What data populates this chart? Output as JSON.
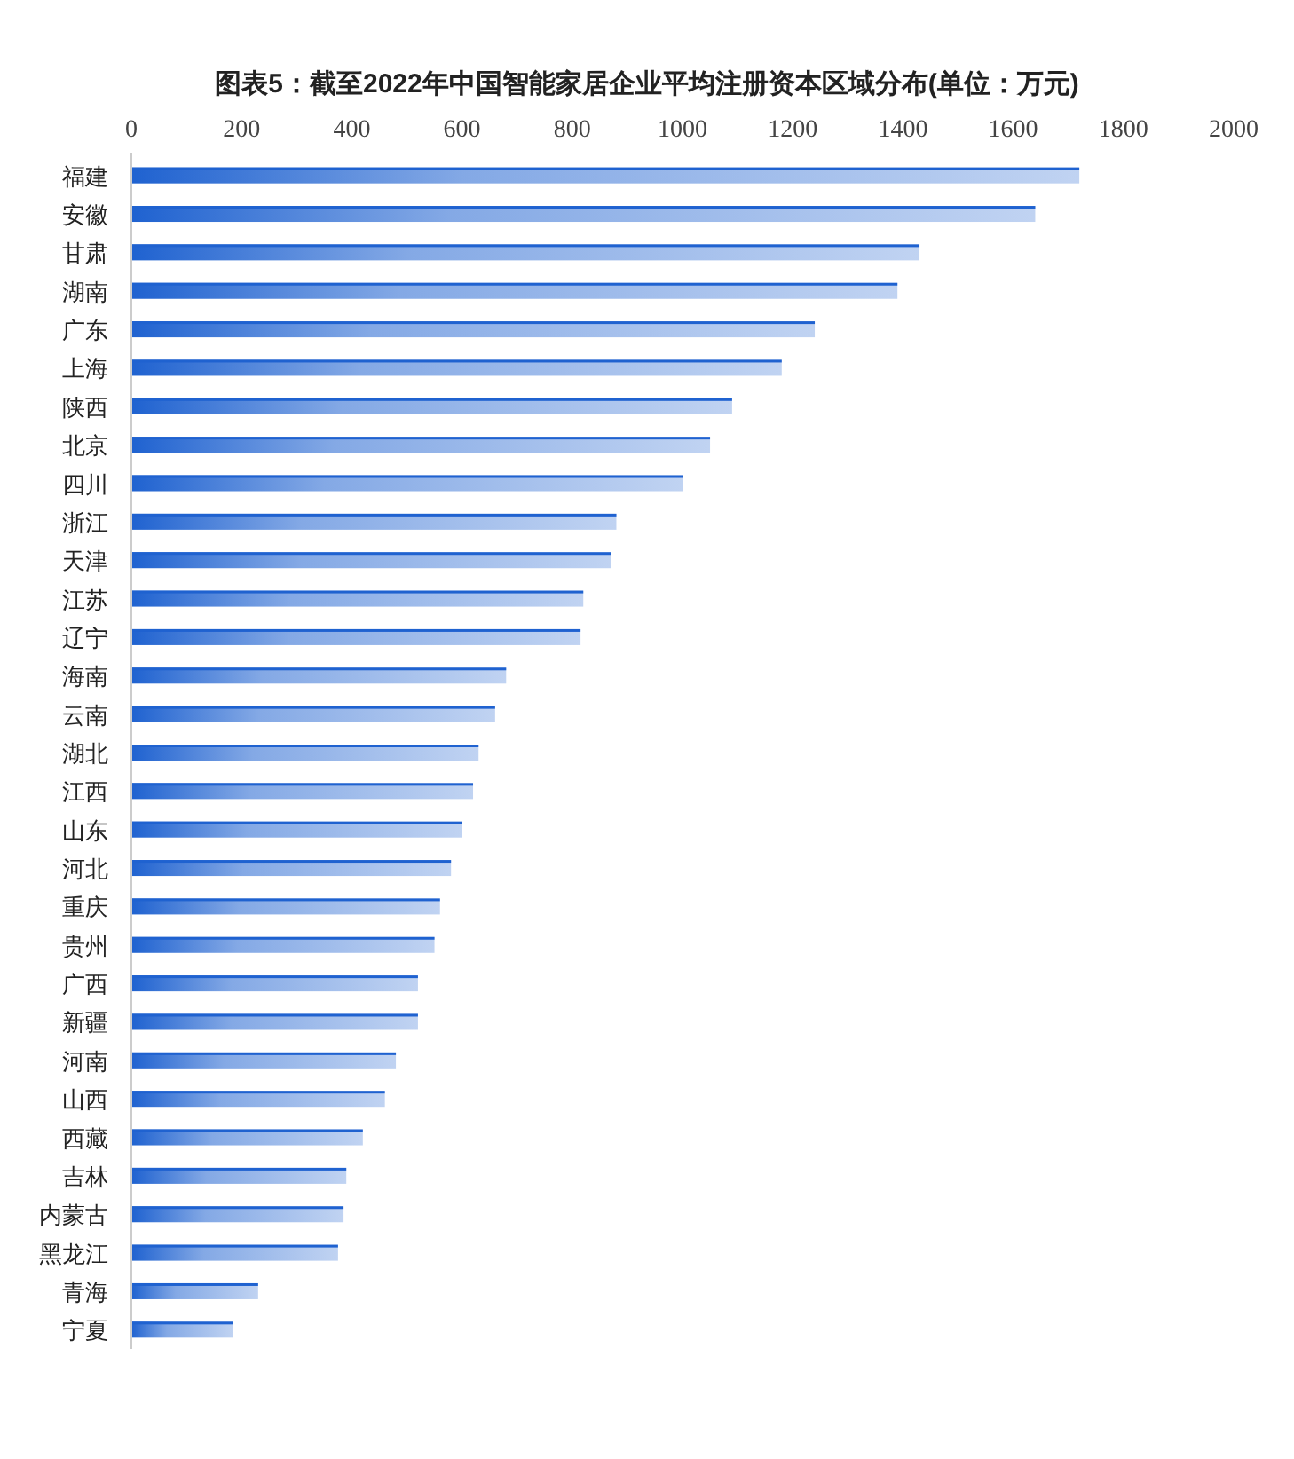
{
  "chart_data": {
    "type": "bar",
    "orientation": "horizontal",
    "title": "图表5：截至2022年中国智能家居企业平均注册资本区域分布(单位：万元)",
    "categories": [
      "福建",
      "安徽",
      "甘肃",
      "湖南",
      "广东",
      "上海",
      "陕西",
      "北京",
      "四川",
      "浙江",
      "天津",
      "江苏",
      "辽宁",
      "海南",
      "云南",
      "湖北",
      "江西",
      "山东",
      "河北",
      "重庆",
      "贵州",
      "广西",
      "新疆",
      "河南",
      "山西",
      "西藏",
      "吉林",
      "内蒙古",
      "黑龙江",
      "青海",
      "宁夏"
    ],
    "values": [
      1720,
      1640,
      1430,
      1390,
      1240,
      1180,
      1090,
      1050,
      1000,
      880,
      870,
      820,
      815,
      680,
      660,
      630,
      620,
      600,
      580,
      560,
      550,
      520,
      520,
      480,
      460,
      420,
      390,
      385,
      375,
      230,
      185
    ],
    "color": "#1f62d0",
    "xlim": [
      0,
      2000
    ],
    "xticks": [
      0,
      200,
      400,
      600,
      800,
      1000,
      1200,
      1400,
      1600,
      1800,
      2000
    ],
    "grid": false
  }
}
